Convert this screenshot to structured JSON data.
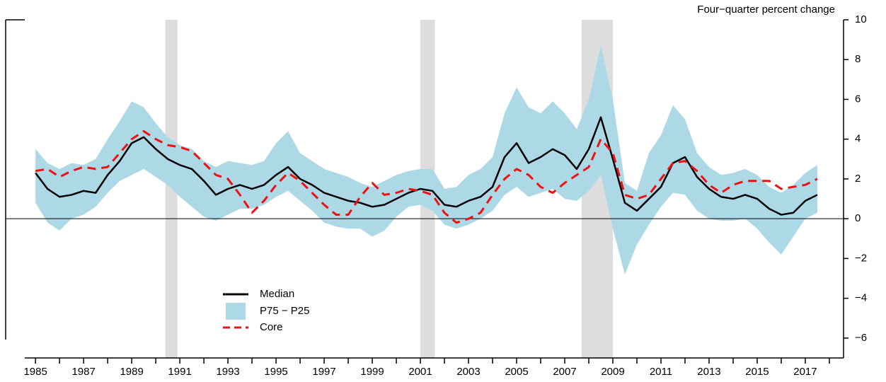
{
  "chart_data": {
    "type": "line",
    "y_axis_label": "Four−quarter percent change",
    "x": [
      1985.0,
      1985.5,
      1986.0,
      1986.5,
      1987.0,
      1987.5,
      1988.0,
      1988.5,
      1989.0,
      1989.5,
      1990.0,
      1990.5,
      1991.0,
      1991.5,
      1992.0,
      1992.5,
      1993.0,
      1993.5,
      1994.0,
      1994.5,
      1995.0,
      1995.5,
      1996.0,
      1996.5,
      1997.0,
      1997.5,
      1998.0,
      1998.5,
      1999.0,
      1999.5,
      2000.0,
      2000.5,
      2001.0,
      2001.5,
      2002.0,
      2002.5,
      2003.0,
      2003.5,
      2004.0,
      2004.5,
      2005.0,
      2005.5,
      2006.0,
      2006.5,
      2007.0,
      2007.5,
      2008.0,
      2008.5,
      2009.0,
      2009.5,
      2010.0,
      2010.5,
      2011.0,
      2011.5,
      2012.0,
      2012.5,
      2013.0,
      2013.5,
      2014.0,
      2014.5,
      2015.0,
      2015.5,
      2016.0,
      2016.5,
      2017.0,
      2017.5
    ],
    "series": [
      {
        "name": "Median",
        "color": "#000000",
        "dash": false,
        "values": [
          2.3,
          1.5,
          1.1,
          1.2,
          1.4,
          1.3,
          2.2,
          2.9,
          3.8,
          4.1,
          3.5,
          3.0,
          2.7,
          2.5,
          1.9,
          1.2,
          1.5,
          1.7,
          1.5,
          1.7,
          2.2,
          2.6,
          2.0,
          1.7,
          1.3,
          1.1,
          0.9,
          0.8,
          0.6,
          0.7,
          1.0,
          1.3,
          1.5,
          1.4,
          0.7,
          0.6,
          0.9,
          1.1,
          1.6,
          3.1,
          3.8,
          2.8,
          3.1,
          3.5,
          3.2,
          2.5,
          3.5,
          5.1,
          3.0,
          0.8,
          0.4,
          1.0,
          1.6,
          2.8,
          3.1,
          2.1,
          1.5,
          1.1,
          1.0,
          1.2,
          1.0,
          0.5,
          0.2,
          0.3,
          0.9,
          1.2
        ]
      },
      {
        "name": "Core",
        "color": "#ee1111",
        "dash": true,
        "values": [
          2.4,
          2.5,
          2.1,
          2.4,
          2.6,
          2.5,
          2.6,
          3.3,
          4.0,
          4.4,
          4.0,
          3.7,
          3.6,
          3.4,
          2.8,
          2.2,
          2.0,
          1.2,
          0.3,
          0.9,
          1.7,
          2.3,
          1.9,
          1.3,
          0.7,
          0.2,
          0.2,
          1.1,
          1.8,
          1.2,
          1.3,
          1.5,
          1.4,
          1.2,
          0.3,
          -0.2,
          0.0,
          0.3,
          1.2,
          2.0,
          2.5,
          2.2,
          1.6,
          1.3,
          1.8,
          2.2,
          2.6,
          4.0,
          3.3,
          1.2,
          1.0,
          1.2,
          2.0,
          2.8,
          2.9,
          2.4,
          1.7,
          1.3,
          1.7,
          1.9,
          1.9,
          1.9,
          1.5,
          1.6,
          1.7,
          2.0
        ]
      }
    ],
    "band": {
      "name": "P75 − P25",
      "color": "#add8e6",
      "upper": [
        3.5,
        2.8,
        2.5,
        2.8,
        2.7,
        3.0,
        4.0,
        4.9,
        5.9,
        5.6,
        4.8,
        4.1,
        3.7,
        3.5,
        2.9,
        2.6,
        2.9,
        2.8,
        2.7,
        2.9,
        3.8,
        4.4,
        3.3,
        2.9,
        2.5,
        2.3,
        2.1,
        1.8,
        1.6,
        1.9,
        2.2,
        2.4,
        2.5,
        2.5,
        1.5,
        1.6,
        2.2,
        2.5,
        3.1,
        5.3,
        6.6,
        5.6,
        5.3,
        5.9,
        5.3,
        4.5,
        6.0,
        8.7,
        6.0,
        1.8,
        1.4,
        3.3,
        4.2,
        5.7,
        5.0,
        3.3,
        2.6,
        2.2,
        2.3,
        2.5,
        2.2,
        1.6,
        1.3,
        1.7,
        2.3,
        2.7
      ],
      "lower": [
        0.8,
        -0.2,
        -0.6,
        0.0,
        0.2,
        0.6,
        1.3,
        1.9,
        2.2,
        2.5,
        2.1,
        1.7,
        1.1,
        0.6,
        0.1,
        -0.1,
        0.2,
        0.5,
        0.5,
        0.7,
        1.1,
        1.4,
        0.9,
        0.4,
        -0.2,
        -0.4,
        -0.5,
        -0.5,
        -0.9,
        -0.6,
        0.1,
        0.6,
        0.7,
        0.4,
        -0.3,
        -0.5,
        -0.3,
        0.0,
        0.4,
        1.2,
        1.6,
        1.1,
        1.3,
        1.5,
        1.0,
        0.9,
        1.4,
        2.2,
        -0.5,
        -2.8,
        -1.3,
        -0.3,
        0.6,
        1.3,
        1.2,
        0.4,
        0.0,
        -0.1,
        -0.1,
        0.0,
        -0.5,
        -1.2,
        -1.8,
        -0.9,
        0.0,
        0.3
      ]
    },
    "shaded_periods": [
      [
        1990.4,
        1990.9
      ],
      [
        2001.0,
        2001.6
      ],
      [
        2007.7,
        2009.0
      ]
    ],
    "shade_color": "#dddddd",
    "hline": 0,
    "xlim": [
      1983.76,
      2018.59
    ],
    "xticks": [
      1985,
      1987,
      1989,
      1991,
      1993,
      1995,
      1997,
      1999,
      2001,
      2003,
      2005,
      2007,
      2009,
      2011,
      2013,
      2015,
      2017
    ],
    "xminorticks": [
      1986,
      1988,
      1990,
      1992,
      1994,
      1996,
      1998,
      2000,
      2002,
      2004,
      2006,
      2008,
      2010,
      2012,
      2014,
      2016,
      2018
    ],
    "ylim": [
      -7,
      10
    ],
    "yticks": [
      {
        "value": -6,
        "label": "−6"
      },
      {
        "value": -4,
        "label": "−4"
      },
      {
        "value": -2,
        "label": "−2"
      },
      0,
      2,
      4,
      6,
      8,
      10
    ],
    "y_axis_side": "right",
    "legend": "lower left"
  }
}
